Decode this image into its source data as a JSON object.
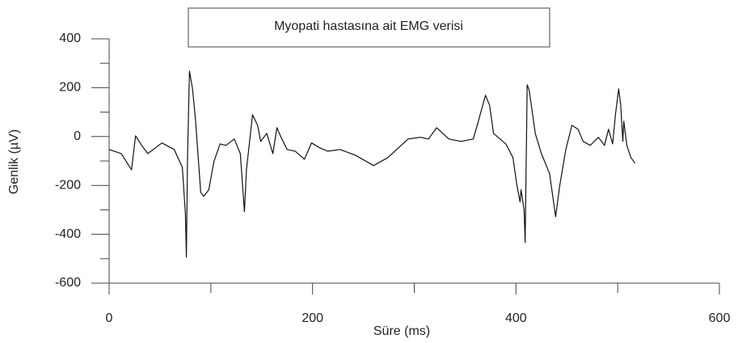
{
  "chart_data": {
    "type": "line",
    "title": "Myopati hastasına ait EMG verisi",
    "xlabel": "Süre (ms)",
    "ylabel": "Genlik (µV)",
    "xlim": [
      0,
      600
    ],
    "ylim": [
      -600,
      400
    ],
    "xticks": [
      0,
      200,
      400,
      600
    ],
    "yticks": [
      -600,
      -400,
      -200,
      0,
      200,
      400
    ],
    "xticks_minor": [
      100,
      300,
      500
    ],
    "yticks_minor": [
      -500,
      -300,
      -100,
      100,
      300
    ],
    "series": [
      {
        "name": "EMG",
        "color": "#111111",
        "x": [
          0,
          12,
          22,
          26,
          32,
          38,
          52,
          64,
          72,
          75,
          76,
          77,
          79,
          82,
          85,
          90,
          93,
          98,
          103,
          109,
          115,
          123,
          129,
          133,
          135,
          141,
          146,
          149,
          155,
          161,
          165,
          169,
          175,
          183,
          192,
          199,
          207,
          215,
          227,
          242,
          260,
          274,
          294,
          306,
          314,
          322,
          334,
          346,
          358,
          363,
          370,
          374,
          378,
          390,
          397,
          401,
          404,
          405,
          408,
          409,
          411,
          413,
          419,
          425,
          433,
          439,
          443,
          449,
          455,
          461,
          466,
          473,
          481,
          487,
          491,
          495,
          498,
          501,
          503,
          505,
          506,
          509,
          513,
          517
        ],
        "values": [
          -53,
          -70,
          -136,
          3,
          -36,
          -70,
          -26,
          -53,
          -126,
          -318,
          -493,
          -103,
          268,
          195,
          63,
          -228,
          -245,
          -218,
          -103,
          -30,
          -36,
          -10,
          -70,
          -308,
          -136,
          89,
          46,
          -20,
          13,
          -70,
          36,
          -3,
          -53,
          -60,
          -93,
          -26,
          -46,
          -60,
          -53,
          -76,
          -119,
          -86,
          -10,
          -3,
          -10,
          36,
          -10,
          -20,
          -10,
          63,
          169,
          129,
          13,
          -30,
          -86,
          -202,
          -268,
          -218,
          -301,
          -434,
          212,
          189,
          13,
          -70,
          -152,
          -328,
          -202,
          -53,
          46,
          30,
          -20,
          -36,
          -3,
          -36,
          30,
          -30,
          96,
          195,
          129,
          -20,
          63,
          -36,
          -86,
          -109
        ]
      }
    ]
  }
}
